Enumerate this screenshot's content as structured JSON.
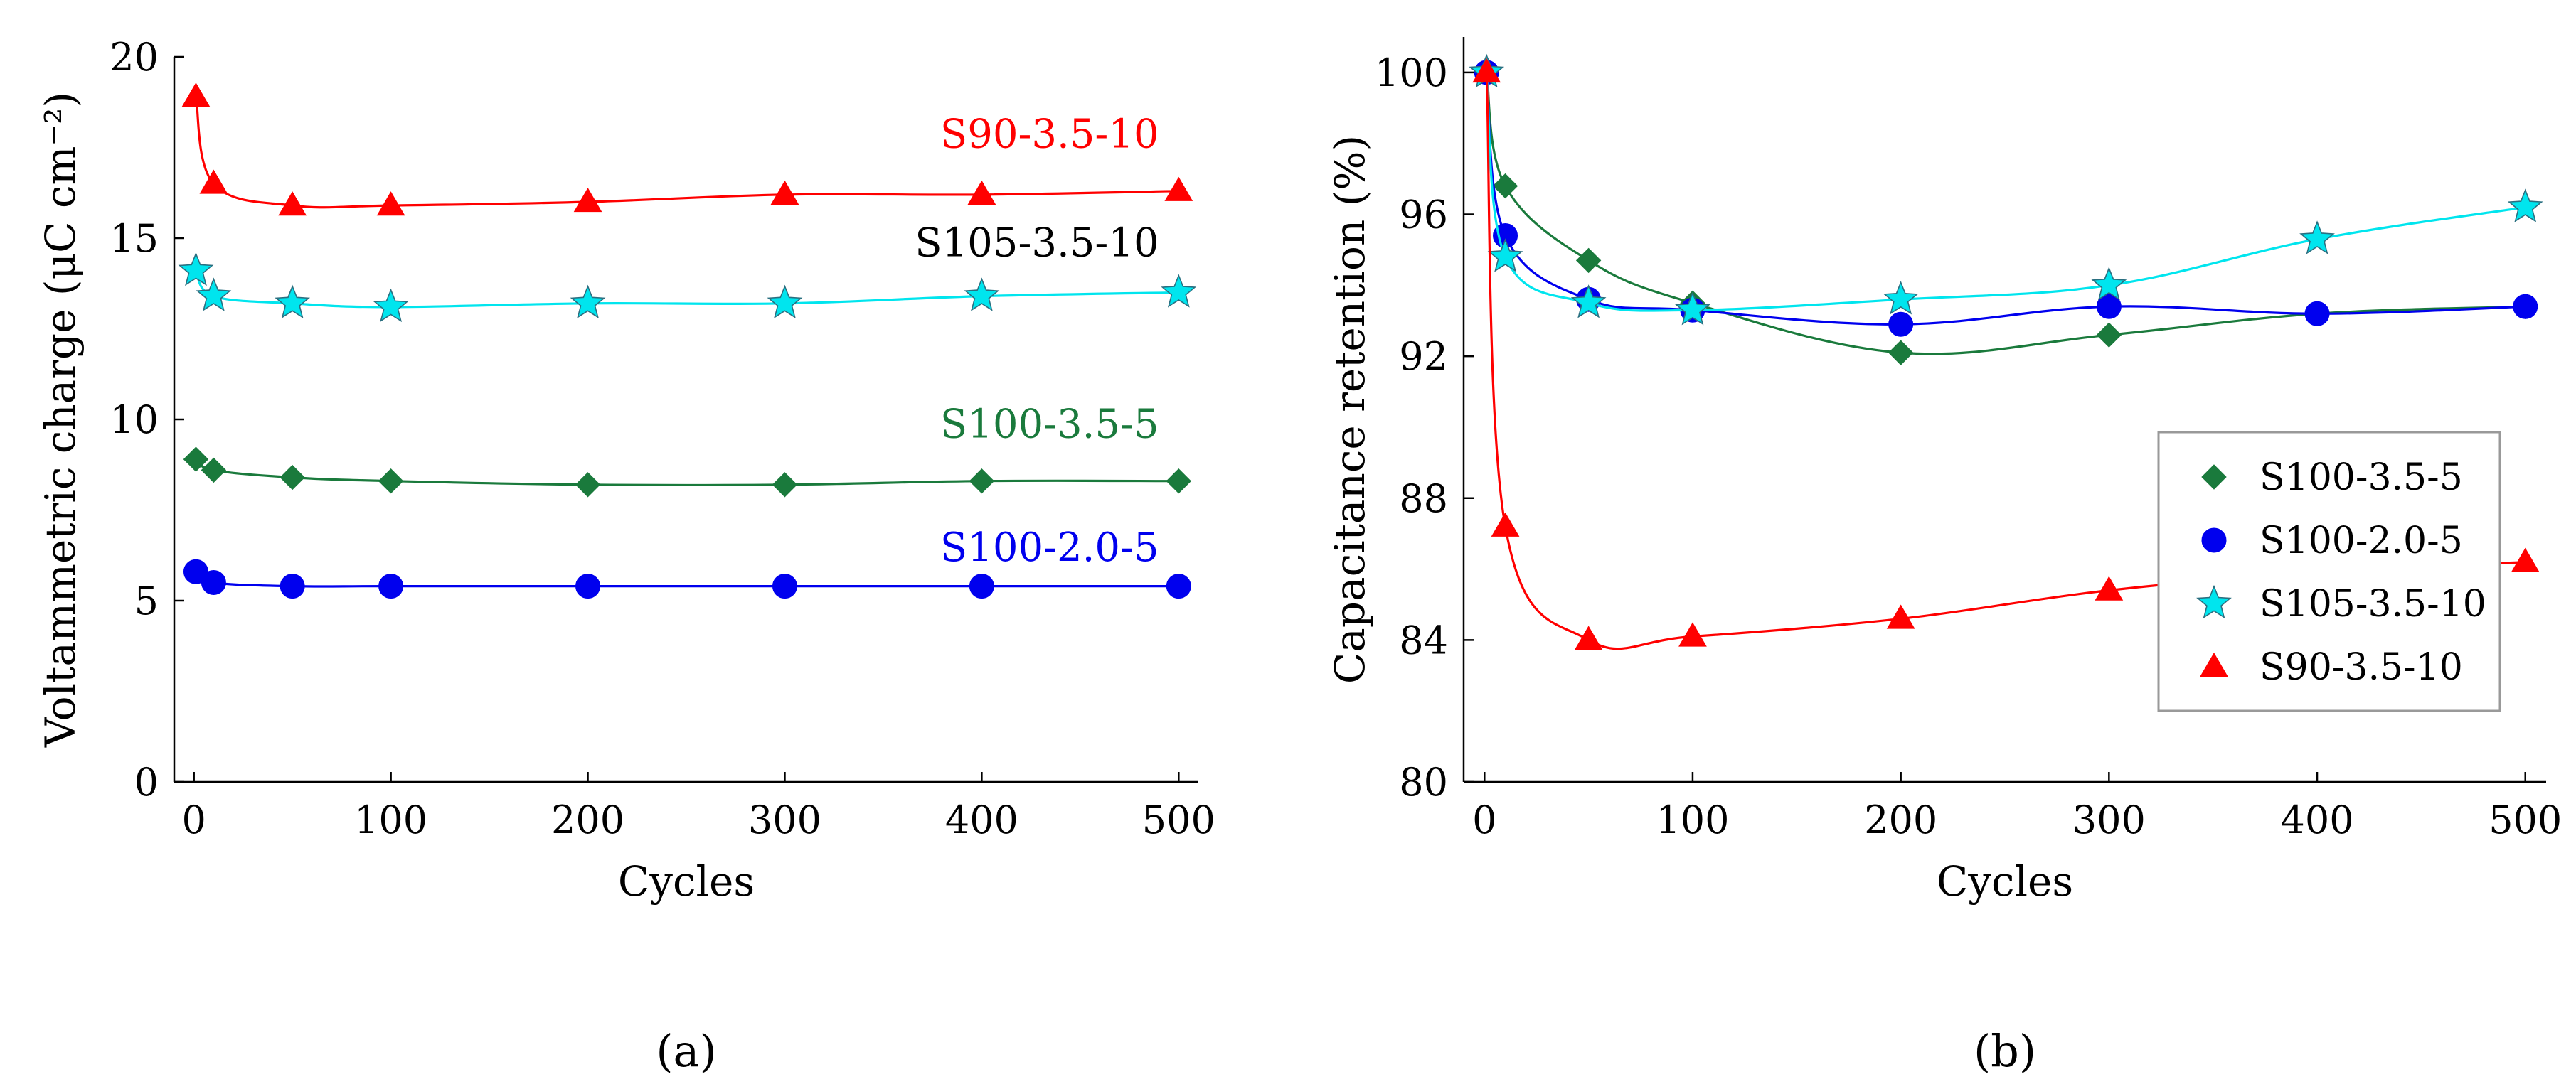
{
  "chart_data": [
    {
      "type": "line",
      "panel_label": "(a)",
      "title": "",
      "xlabel": "Cycles",
      "ylabel": "Voltammetric charge (μC cm⁻²)",
      "xlim": [
        -10,
        510
      ],
      "ylim": [
        0,
        20
      ],
      "xticks": [
        0,
        100,
        200,
        300,
        400,
        500
      ],
      "yticks": [
        0,
        5,
        10,
        15,
        20
      ],
      "grid": false,
      "series": [
        {
          "name": "S90-3.5-10",
          "color": "#ff0000",
          "marker": "triangle",
          "x": [
            1,
            10,
            50,
            100,
            200,
            300,
            400,
            500
          ],
          "y": [
            18.9,
            16.5,
            15.9,
            15.9,
            16.0,
            16.2,
            16.2,
            16.3
          ]
        },
        {
          "name": "S105-3.5-10",
          "color": "#00e5ee",
          "marker": "star",
          "x": [
            1,
            10,
            50,
            100,
            200,
            300,
            400,
            500
          ],
          "y": [
            14.1,
            13.4,
            13.2,
            13.1,
            13.2,
            13.2,
            13.4,
            13.5
          ]
        },
        {
          "name": "S100-3.5-5",
          "color": "#1a7a3c",
          "marker": "diamond",
          "x": [
            1,
            10,
            50,
            100,
            200,
            300,
            400,
            500
          ],
          "y": [
            8.9,
            8.6,
            8.4,
            8.3,
            8.2,
            8.2,
            8.3,
            8.3
          ]
        },
        {
          "name": "S100-2.0-5",
          "color": "#0000ee",
          "marker": "circle",
          "x": [
            1,
            10,
            50,
            100,
            200,
            300,
            400,
            500
          ],
          "y": [
            5.8,
            5.5,
            5.4,
            5.4,
            5.4,
            5.4,
            5.4,
            5.4
          ]
        }
      ],
      "annotations": [
        {
          "text": "S90-3.5-10",
          "color": "#ff0000",
          "x": 490,
          "y": 17.5
        },
        {
          "text": "S105-3.5-10",
          "color": "#000000",
          "x": 490,
          "y": 14.5
        },
        {
          "text": "S100-3.5-5",
          "color": "#1a7a3c",
          "x": 490,
          "y": 9.5
        },
        {
          "text": "S100-2.0-5",
          "color": "#0000ee",
          "x": 490,
          "y": 6.1
        }
      ]
    },
    {
      "type": "line",
      "panel_label": "(b)",
      "title": "",
      "xlabel": "Cycles",
      "ylabel": "Capacitance retention (%)",
      "xlim": [
        -10,
        510
      ],
      "ylim": [
        80,
        101
      ],
      "xticks": [
        0,
        100,
        200,
        300,
        400,
        500
      ],
      "yticks": [
        80,
        84,
        88,
        92,
        96,
        100
      ],
      "grid": false,
      "legend": "center-right",
      "series": [
        {
          "name": "S100-3.5-5",
          "color": "#1a7a3c",
          "marker": "diamond",
          "x": [
            1,
            10,
            50,
            100,
            200,
            300,
            400,
            500
          ],
          "y": [
            100,
            96.8,
            94.7,
            93.5,
            92.1,
            92.6,
            93.2,
            93.4
          ]
        },
        {
          "name": "S100-2.0-5",
          "color": "#0000ee",
          "marker": "circle",
          "x": [
            1,
            10,
            50,
            100,
            200,
            300,
            400,
            500
          ],
          "y": [
            100,
            95.4,
            93.6,
            93.3,
            92.9,
            93.4,
            93.2,
            93.4
          ]
        },
        {
          "name": "S105-3.5-10",
          "color": "#00e5ee",
          "marker": "star",
          "x": [
            1,
            10,
            50,
            100,
            200,
            300,
            400,
            500
          ],
          "y": [
            100,
            94.8,
            93.5,
            93.3,
            93.6,
            94.0,
            95.3,
            96.2
          ]
        },
        {
          "name": "S90-3.5-10",
          "color": "#ff0000",
          "marker": "triangle",
          "x": [
            1,
            10,
            50,
            100,
            200,
            300,
            400,
            500
          ],
          "y": [
            100,
            87.2,
            84.0,
            84.1,
            84.6,
            85.4,
            85.9,
            86.2
          ]
        }
      ]
    }
  ]
}
